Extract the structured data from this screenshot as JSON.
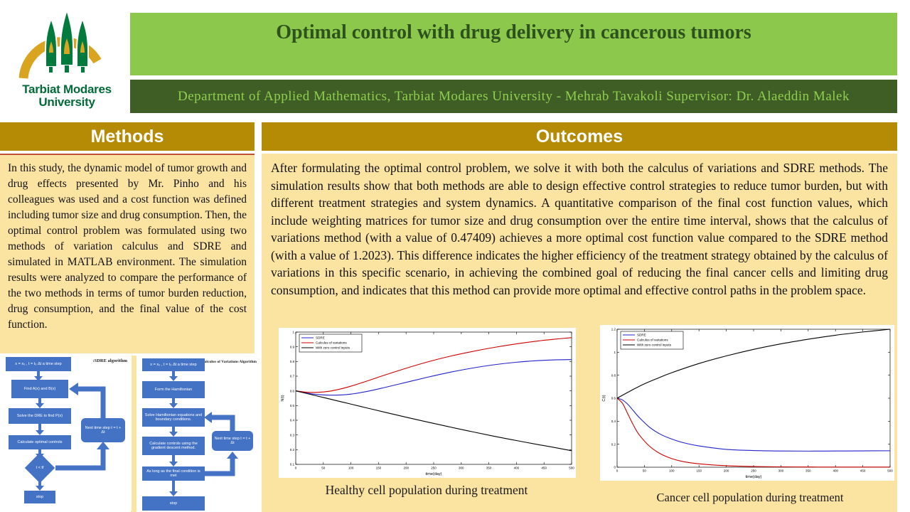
{
  "header": {
    "title": "Optimal control with drug delivery in cancerous tumors",
    "subtitle": "Department of Applied Mathematics, Tarbiat Modares University - Mehrab Tavakoli Supervisor: Dr. Alaeddin Malek"
  },
  "logo": {
    "line1": "Tarbiat Modares",
    "line2": "University"
  },
  "methods": {
    "heading": "Methods",
    "body": "In this study, the dynamic model of tumor growth and drug effects presented by Mr. Pinho and his colleagues was used and a cost function was defined including tumor size and drug consumption. Then, the optimal control problem was formulated using two methods of variation calculus and SDRE and simulated in MATLAB environment. The simulation results were analyzed to compare the performance of the two methods in terms of tumor burden reduction, drug consumption, and the final value of the cost function."
  },
  "outcomes": {
    "heading": "Outcomes",
    "body": "After formulating the optimal control problem, we solve it with both the calculus of variations and SDRE methods. The simulation results show that both methods are able to design effective control strategies to reduce tumor burden, but with different treatment strategies and system dynamics. A quantitative comparison of the final cost function values, which include weighting matrices for tumor size and drug consumption over the entire time interval, shows that the calculus of variations method (with a value of 0.47409) achieves a more optimal cost function value compared to the SDRE method (with a value of 1.2023). This difference indicates the higher efficiency of the treatment strategy obtained by the calculus of variations in this specific scenario, in achieving the combined goal of reducing the final cancer cells and limiting drug consumption, and indicates that this method can provide more optimal and effective control paths in the problem space."
  },
  "flowcharts": {
    "sdre": {
      "title": ":SDRE algorithm",
      "init": "x = x₀ , t = t₀  Δt a time step",
      "step1": "Find A(x) and B(x)",
      "step2": "Solve the DRE to find P(x)",
      "step3": "Calculate optimal controls",
      "decision": "t < tf",
      "loop": "Next time step t = t + Δt",
      "stop": "stop"
    },
    "cov": {
      "title": ":Calculus of Variations Algorithm",
      "init": "x = x₀ , t = t₀  Δt a time step",
      "step1": "Form the Hamiltonian",
      "step2": "Solve Hamiltonian equations and boundary conditions.",
      "step3": "Calculate controls using the gradient descent method.",
      "step4": "As long as the final condition is met",
      "loop": "Next time step t = t + Δt",
      "stop": "stop"
    }
  },
  "colors": {
    "light_green": "#8CC84B",
    "dark_green": "#3F5E26",
    "gold": "#B58B06",
    "wheat": "#FBE3A2",
    "flow_blue": "#4472C4",
    "sdre_line": "#2222CC",
    "cov_line": "#CC0000",
    "zero_line": "#000000"
  },
  "chart_data": [
    {
      "type": "line",
      "caption": "Healthy cell population during treatment",
      "xlabel": "time(day)",
      "ylabel": "N(t)",
      "xlim": [
        0,
        500
      ],
      "ylim": [
        0.1,
        1.0
      ],
      "xticks": [
        0,
        50,
        100,
        150,
        200,
        250,
        300,
        350,
        400,
        450,
        500
      ],
      "yticks": [
        0.1,
        0.2,
        0.3,
        0.4,
        0.5,
        0.6,
        0.7,
        0.8,
        0.9,
        1.0
      ],
      "legend_position": "top-left",
      "grid": false,
      "series": [
        {
          "name": "SDRE",
          "color": "#2222CC",
          "x": [
            0,
            20,
            40,
            60,
            80,
            100,
            130,
            160,
            200,
            240,
            280,
            320,
            360,
            400,
            440,
            470,
            500
          ],
          "y": [
            0.6,
            0.585,
            0.575,
            0.571,
            0.572,
            0.578,
            0.597,
            0.622,
            0.658,
            0.694,
            0.727,
            0.755,
            0.778,
            0.795,
            0.806,
            0.811,
            0.813
          ]
        },
        {
          "name": "Calculus of variations",
          "color": "#CC0000",
          "x": [
            0,
            20,
            40,
            60,
            80,
            100,
            130,
            160,
            200,
            240,
            280,
            320,
            360,
            400,
            440,
            470,
            500
          ],
          "y": [
            0.6,
            0.591,
            0.59,
            0.597,
            0.612,
            0.632,
            0.668,
            0.706,
            0.754,
            0.798,
            0.836,
            0.868,
            0.896,
            0.92,
            0.94,
            0.952,
            0.962
          ]
        },
        {
          "name": "With zero control inputs",
          "color": "#000000",
          "x": [
            0,
            20,
            40,
            60,
            80,
            100,
            130,
            160,
            200,
            240,
            280,
            320,
            360,
            400,
            440,
            470,
            500
          ],
          "y": [
            0.6,
            0.582,
            0.564,
            0.546,
            0.528,
            0.51,
            0.483,
            0.456,
            0.421,
            0.387,
            0.354,
            0.322,
            0.291,
            0.262,
            0.234,
            0.214,
            0.193
          ]
        }
      ]
    },
    {
      "type": "line",
      "caption": "Cancer cell population during treatment",
      "xlabel": "time(day)",
      "ylabel": "C(t)",
      "xlim": [
        0,
        500
      ],
      "ylim": [
        0,
        1.2
      ],
      "xticks": [
        0,
        50,
        100,
        150,
        200,
        250,
        300,
        350,
        400,
        450,
        500
      ],
      "yticks": [
        0,
        0.2,
        0.4,
        0.6,
        0.8,
        1.0,
        1.2
      ],
      "legend_position": "top-left",
      "grid": false,
      "series": [
        {
          "name": "SDRE",
          "color": "#2222CC",
          "x": [
            0,
            10,
            20,
            30,
            40,
            60,
            80,
            100,
            120,
            150,
            200,
            250,
            300,
            350,
            400,
            450,
            500
          ],
          "y": [
            0.6,
            0.585,
            0.545,
            0.49,
            0.435,
            0.345,
            0.285,
            0.245,
            0.215,
            0.185,
            0.155,
            0.145,
            0.141,
            0.14,
            0.141,
            0.142,
            0.143
          ]
        },
        {
          "name": "Calculus of variations",
          "color": "#CC0000",
          "x": [
            0,
            10,
            20,
            30,
            40,
            60,
            80,
            100,
            120,
            150,
            200,
            250,
            300,
            350,
            400,
            450,
            500
          ],
          "y": [
            0.6,
            0.555,
            0.46,
            0.365,
            0.285,
            0.18,
            0.115,
            0.075,
            0.05,
            0.03,
            0.013,
            0.006,
            0.003,
            0.002,
            0.001,
            0.001,
            0.001
          ]
        },
        {
          "name": "With zero control inputs",
          "color": "#000000",
          "x": [
            0,
            25,
            50,
            75,
            100,
            150,
            200,
            250,
            300,
            350,
            400,
            450,
            500
          ],
          "y": [
            0.6,
            0.665,
            0.725,
            0.775,
            0.822,
            0.902,
            0.968,
            1.025,
            1.073,
            1.113,
            1.148,
            1.176,
            1.2
          ]
        }
      ]
    }
  ]
}
